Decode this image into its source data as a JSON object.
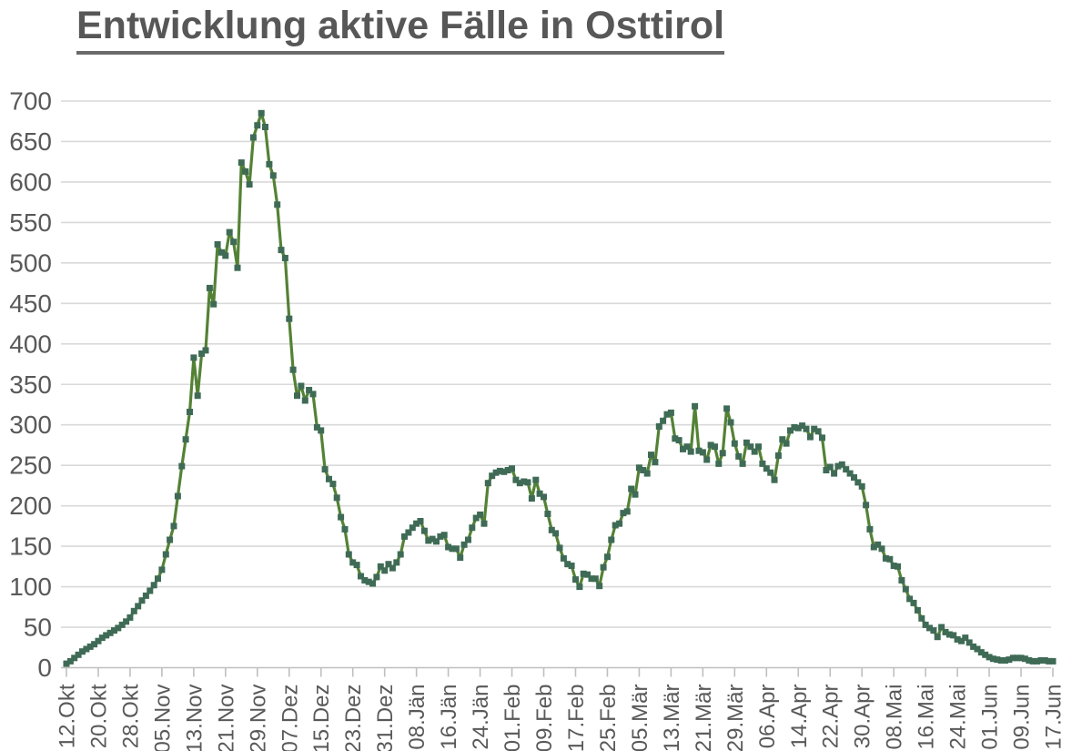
{
  "title": "Entwicklung aktive Fälle in Osttirol",
  "chart_data": {
    "type": "line",
    "title": "Entwicklung aktive Fälle in Osttirol",
    "series_name": "aktive Fälle",
    "xlabel": "",
    "ylabel": "",
    "ylim": [
      0,
      700
    ],
    "y_ticks": [
      0,
      50,
      100,
      150,
      200,
      250,
      300,
      350,
      400,
      450,
      500,
      550,
      600,
      650,
      700
    ],
    "grid": true,
    "legend_position": "none",
    "x_tick_interval_days": 8,
    "x_tick_labels": [
      "12.Okt",
      "20.Okt",
      "28.Okt",
      "05.Nov",
      "13.Nov",
      "21.Nov",
      "29.Nov",
      "07.Dez",
      "15.Dez",
      "23.Dez",
      "31.Dez",
      "08.Jän",
      "16.Jän",
      "24.Jän",
      "01.Feb",
      "09.Feb",
      "17.Feb",
      "25.Feb",
      "05.Mär",
      "13.Mär",
      "21.Mär",
      "29.Mär",
      "06.Apr",
      "14.Apr",
      "22.Apr",
      "30.Apr",
      "08.Mai",
      "16.Mai",
      "24.Mai",
      "01.Jun",
      "09.Jun",
      "17.Jun"
    ],
    "values": [
      5,
      8,
      12,
      16,
      20,
      23,
      26,
      29,
      33,
      37,
      40,
      43,
      46,
      49,
      53,
      57,
      62,
      70,
      76,
      83,
      89,
      95,
      102,
      110,
      121,
      140,
      158,
      175,
      212,
      249,
      282,
      316,
      383,
      336,
      388,
      392,
      469,
      449,
      523,
      513,
      509,
      538,
      526,
      494,
      624,
      613,
      597,
      655,
      670,
      685,
      668,
      622,
      608,
      572,
      516,
      506,
      431,
      368,
      336,
      348,
      330,
      343,
      338,
      297,
      293,
      245,
      233,
      227,
      210,
      186,
      171,
      140,
      130,
      127,
      113,
      108,
      106,
      104,
      112,
      125,
      120,
      128,
      123,
      130,
      140,
      162,
      167,
      173,
      178,
      181,
      169,
      157,
      159,
      156,
      162,
      164,
      149,
      147,
      147,
      136,
      152,
      158,
      173,
      185,
      189,
      178,
      228,
      237,
      241,
      243,
      242,
      244,
      246,
      232,
      228,
      230,
      229,
      209,
      232,
      215,
      211,
      190,
      170,
      166,
      148,
      135,
      128,
      126,
      109,
      100,
      116,
      115,
      110,
      110,
      101,
      124,
      137,
      158,
      176,
      178,
      191,
      193,
      221,
      214,
      247,
      244,
      240,
      263,
      254,
      298,
      305,
      313,
      315,
      283,
      281,
      270,
      273,
      267,
      323,
      268,
      266,
      257,
      275,
      273,
      252,
      265,
      320,
      303,
      277,
      261,
      252,
      278,
      273,
      267,
      273,
      252,
      246,
      241,
      232,
      262,
      282,
      277,
      293,
      297,
      296,
      299,
      295,
      285,
      295,
      292,
      284,
      244,
      248,
      240,
      249,
      251,
      245,
      240,
      235,
      229,
      224,
      201,
      171,
      149,
      152,
      147,
      135,
      134,
      126,
      125,
      108,
      97,
      85,
      80,
      71,
      61,
      53,
      49,
      46,
      38,
      50,
      44,
      41,
      40,
      35,
      33,
      37,
      31,
      26,
      23,
      19,
      16,
      13,
      11,
      10,
      9,
      9,
      10,
      12,
      12,
      12,
      11,
      9,
      8,
      8,
      9,
      9,
      8,
      8
    ],
    "line_color": "#548235",
    "marker_color": "#3f6b56",
    "marker_shape": "square",
    "gridline_color": "#d9d9d9",
    "axis_line_color": "#bfbfbf",
    "tick_label_color": "#595959"
  }
}
